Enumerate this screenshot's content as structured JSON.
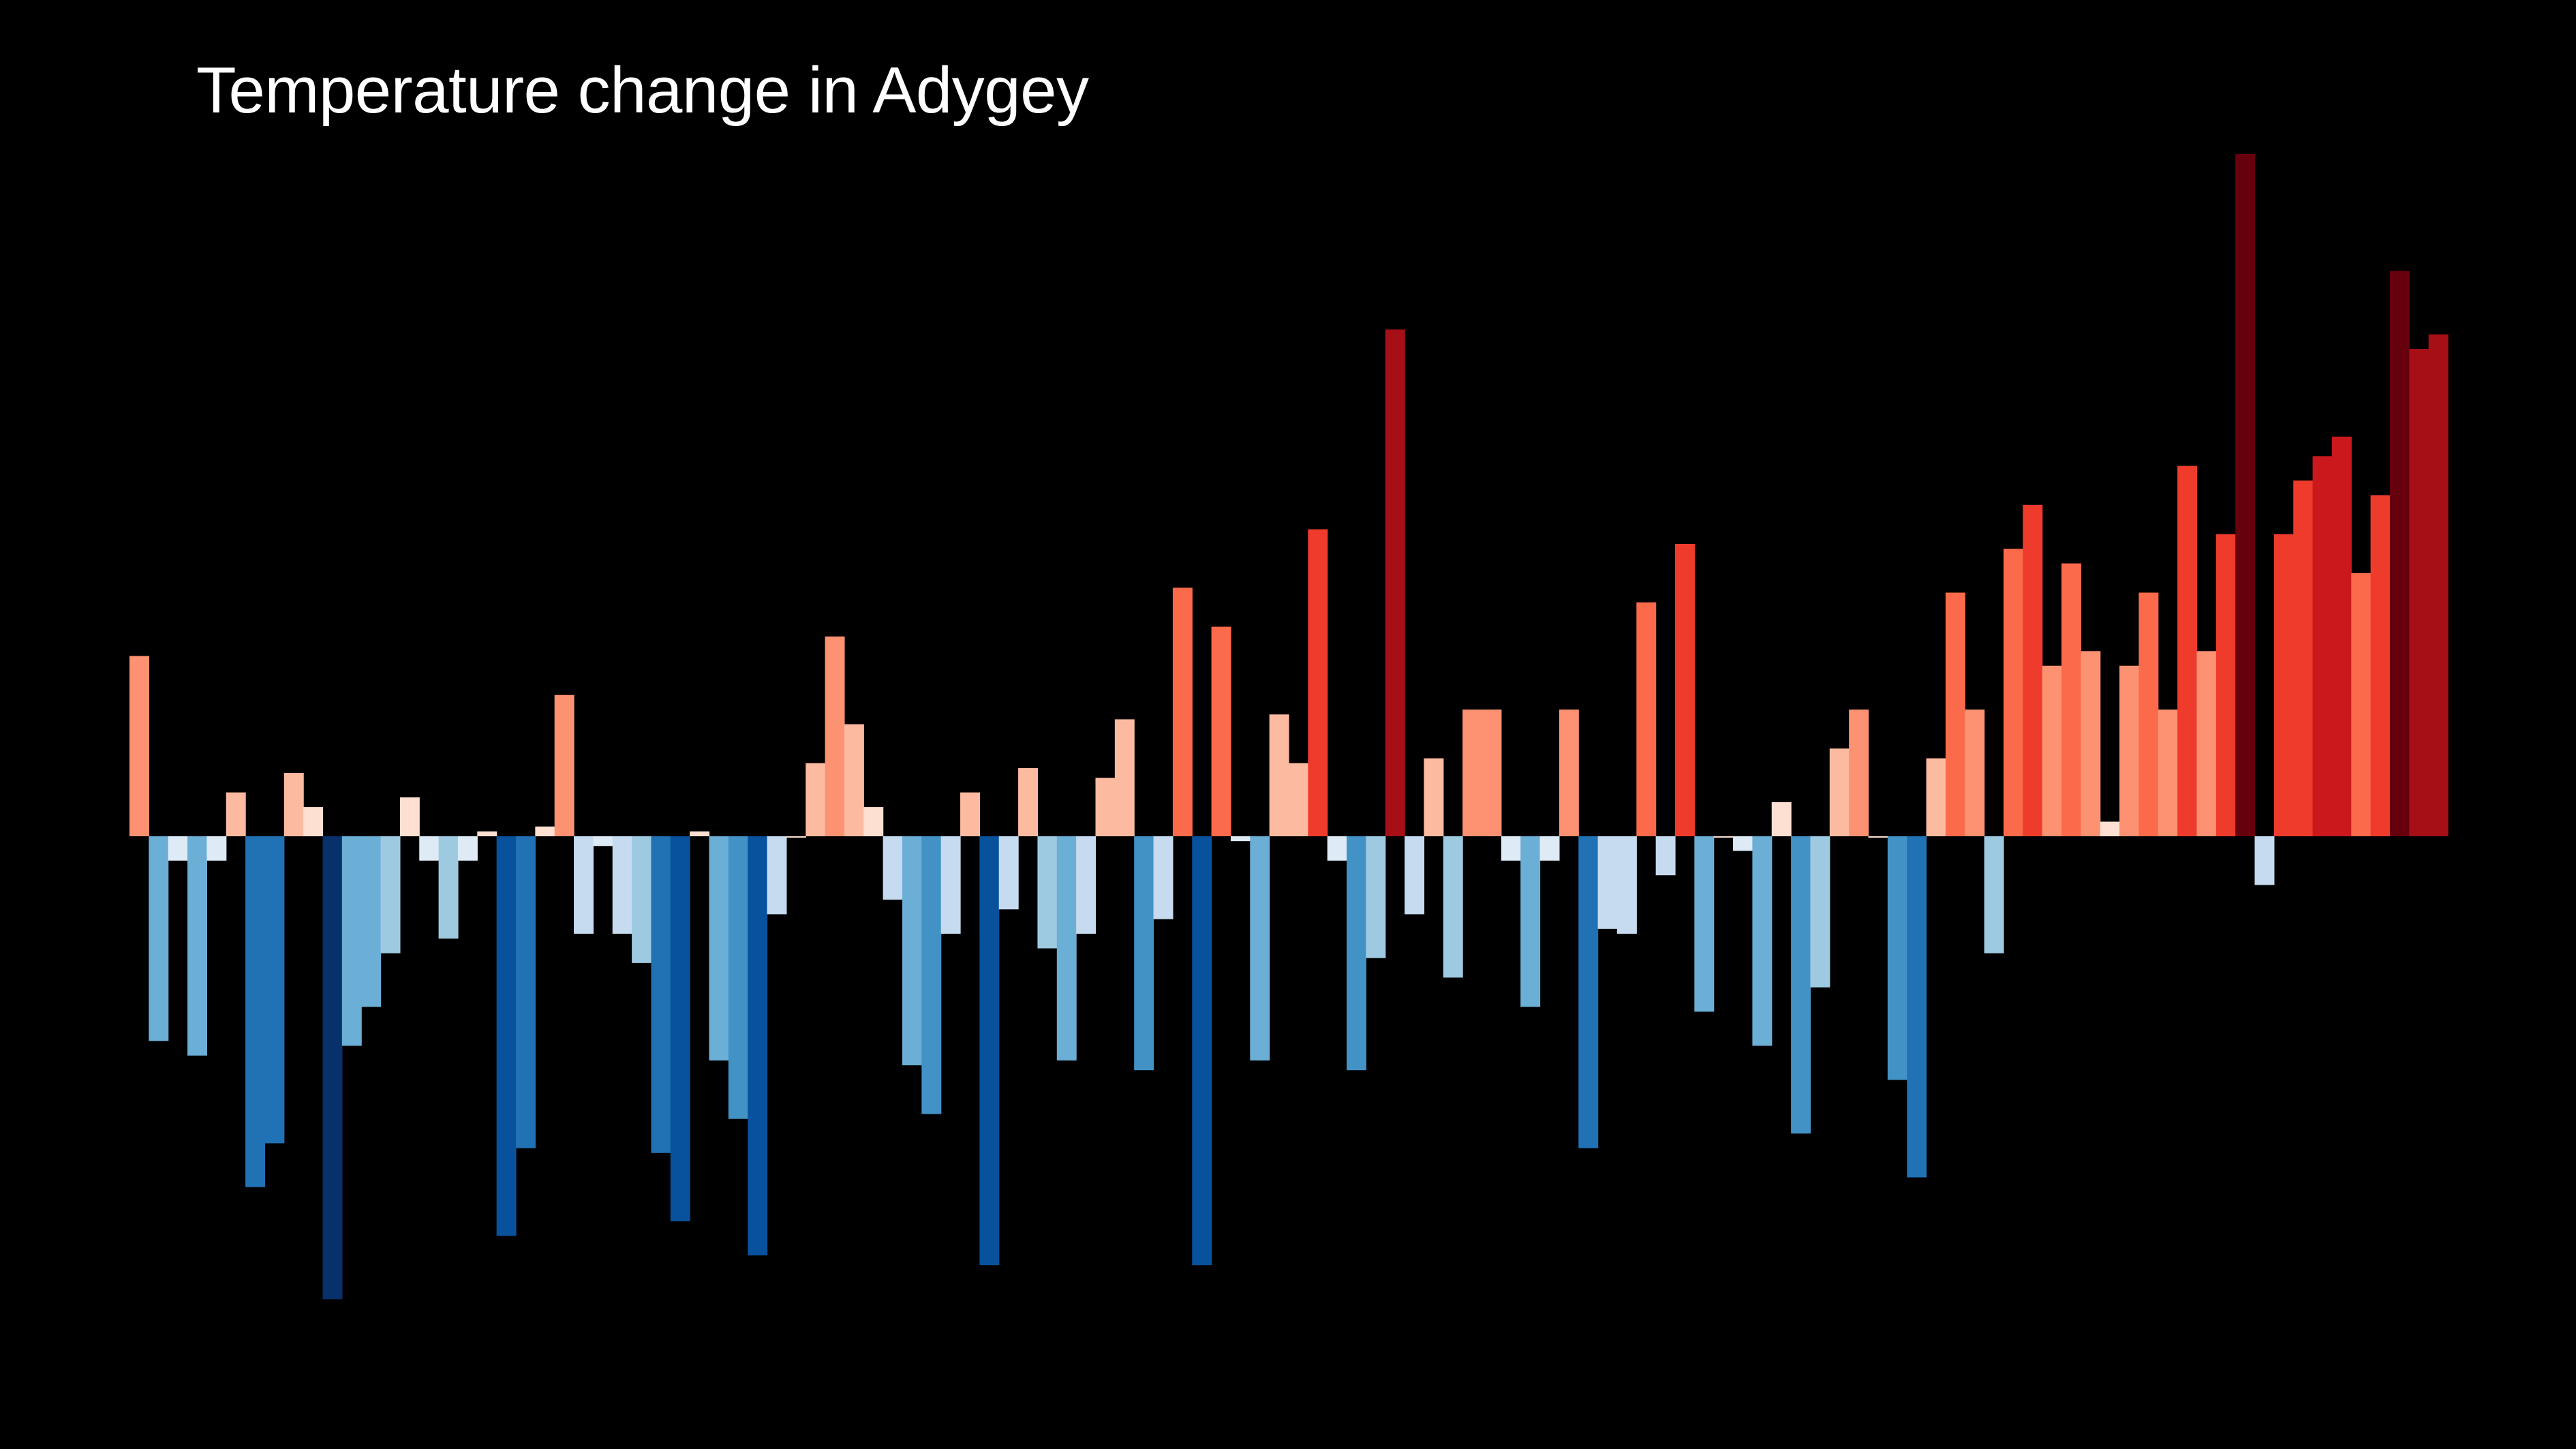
{
  "title": "Temperature change in Adygey",
  "chart_data": {
    "type": "bar",
    "title": "Temperature change in Adygey",
    "xlabel": "",
    "ylabel": "",
    "ylim": [
      -0.95,
      1.4
    ],
    "grid": false,
    "legend": "none",
    "background": "#000000",
    "colorscale": "RdBu_r (blue = below average, red = above average)",
    "values": [
      0.37,
      -0.42,
      -0.05,
      -0.45,
      -0.05,
      0.09,
      -0.72,
      -0.63,
      0.13,
      0.06,
      -0.95,
      -0.43,
      -0.35,
      -0.24,
      0.08,
      -0.05,
      -0.21,
      -0.05,
      0.01,
      -0.82,
      -0.64,
      0.02,
      0.29,
      -0.2,
      -0.02,
      -0.2,
      -0.26,
      -0.65,
      -0.79,
      0.01,
      -0.46,
      -0.58,
      -0.86,
      -0.16,
      0.0,
      0.15,
      0.41,
      0.23,
      0.06,
      -0.13,
      -0.47,
      -0.57,
      -0.2,
      0.09,
      -0.88,
      -0.15,
      0.14,
      -0.23,
      -0.46,
      -0.2,
      0.12,
      0.24,
      -0.48,
      -0.17,
      0.51,
      -0.88,
      0.43,
      -0.01,
      -0.46,
      0.25,
      0.15,
      0.63,
      -0.05,
      -0.48,
      -0.25,
      1.04,
      -0.16,
      0.16,
      -0.29,
      0.26,
      0.26,
      -0.05,
      -0.35,
      -0.05,
      0.26,
      -0.64,
      -0.19,
      -0.2,
      0.48,
      -0.08,
      0.6,
      -0.36,
      0.0,
      -0.03,
      -0.43,
      0.07,
      -0.61,
      -0.31,
      0.18,
      0.26,
      0.0,
      -0.5,
      -0.7,
      0.16,
      0.5,
      0.26,
      -0.24,
      0.59,
      0.68,
      0.35,
      0.56,
      0.38,
      0.03,
      0.35,
      0.5,
      0.26,
      0.76,
      0.38,
      0.62,
      1.4,
      -0.1,
      0.62,
      0.73,
      0.78,
      0.82,
      0.54,
      0.7,
      1.16,
      1.0,
      1.03
    ]
  }
}
